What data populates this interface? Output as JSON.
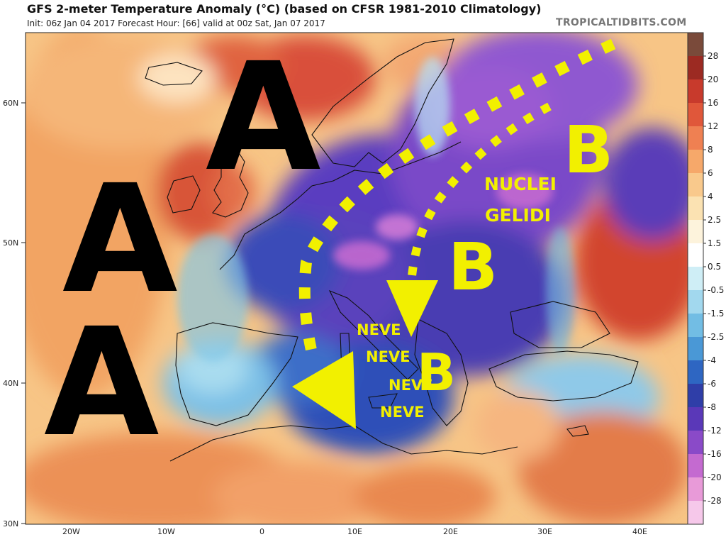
{
  "title": "GFS 2-meter Temperature Anomaly (°C) (based on CFSR 1981-2010 Climatology)",
  "subtitle": "Init: 06z Jan 04 2017   Forecast Hour: [66]   valid at 00z Sat, Jan 07 2017",
  "credit": "TROPICALTIDBITS.COM",
  "map": {
    "lat_labels": [
      "60N",
      "50N",
      "40N",
      "30N"
    ],
    "lon_labels": [
      "20W",
      "10W",
      "0",
      "10E",
      "20E",
      "30E",
      "40E"
    ]
  },
  "colorbar": {
    "labels": [
      "28",
      "20",
      "16",
      "12",
      "8",
      "6",
      "4",
      "2.5",
      "1.5",
      "0.5",
      "-0.5",
      "-1.5",
      "-2.5",
      "-4",
      "-6",
      "-8",
      "-12",
      "-16",
      "-20",
      "-28"
    ],
    "colors": [
      "#7a4a3a",
      "#9c2a22",
      "#c83a2c",
      "#e0573a",
      "#ef8052",
      "#f6a86a",
      "#f9c98c",
      "#fbe2b2",
      "#fdf3dc",
      "#ffffff",
      "#cfeef6",
      "#a2d8ee",
      "#72bde4",
      "#4a98d6",
      "#2e66c2",
      "#2f3ea8",
      "#5a38b8",
      "#8a4ac8",
      "#c46ad0",
      "#e89ad8",
      "#f6c8ea"
    ]
  },
  "annotations": {
    "high_label": "A",
    "low_label": "B",
    "nuclei": "NUCLEI",
    "gelidi": "GELIDI",
    "neve_lines": [
      "NEVE",
      "NEVE",
      "NEVE",
      "NEVE"
    ]
  }
}
